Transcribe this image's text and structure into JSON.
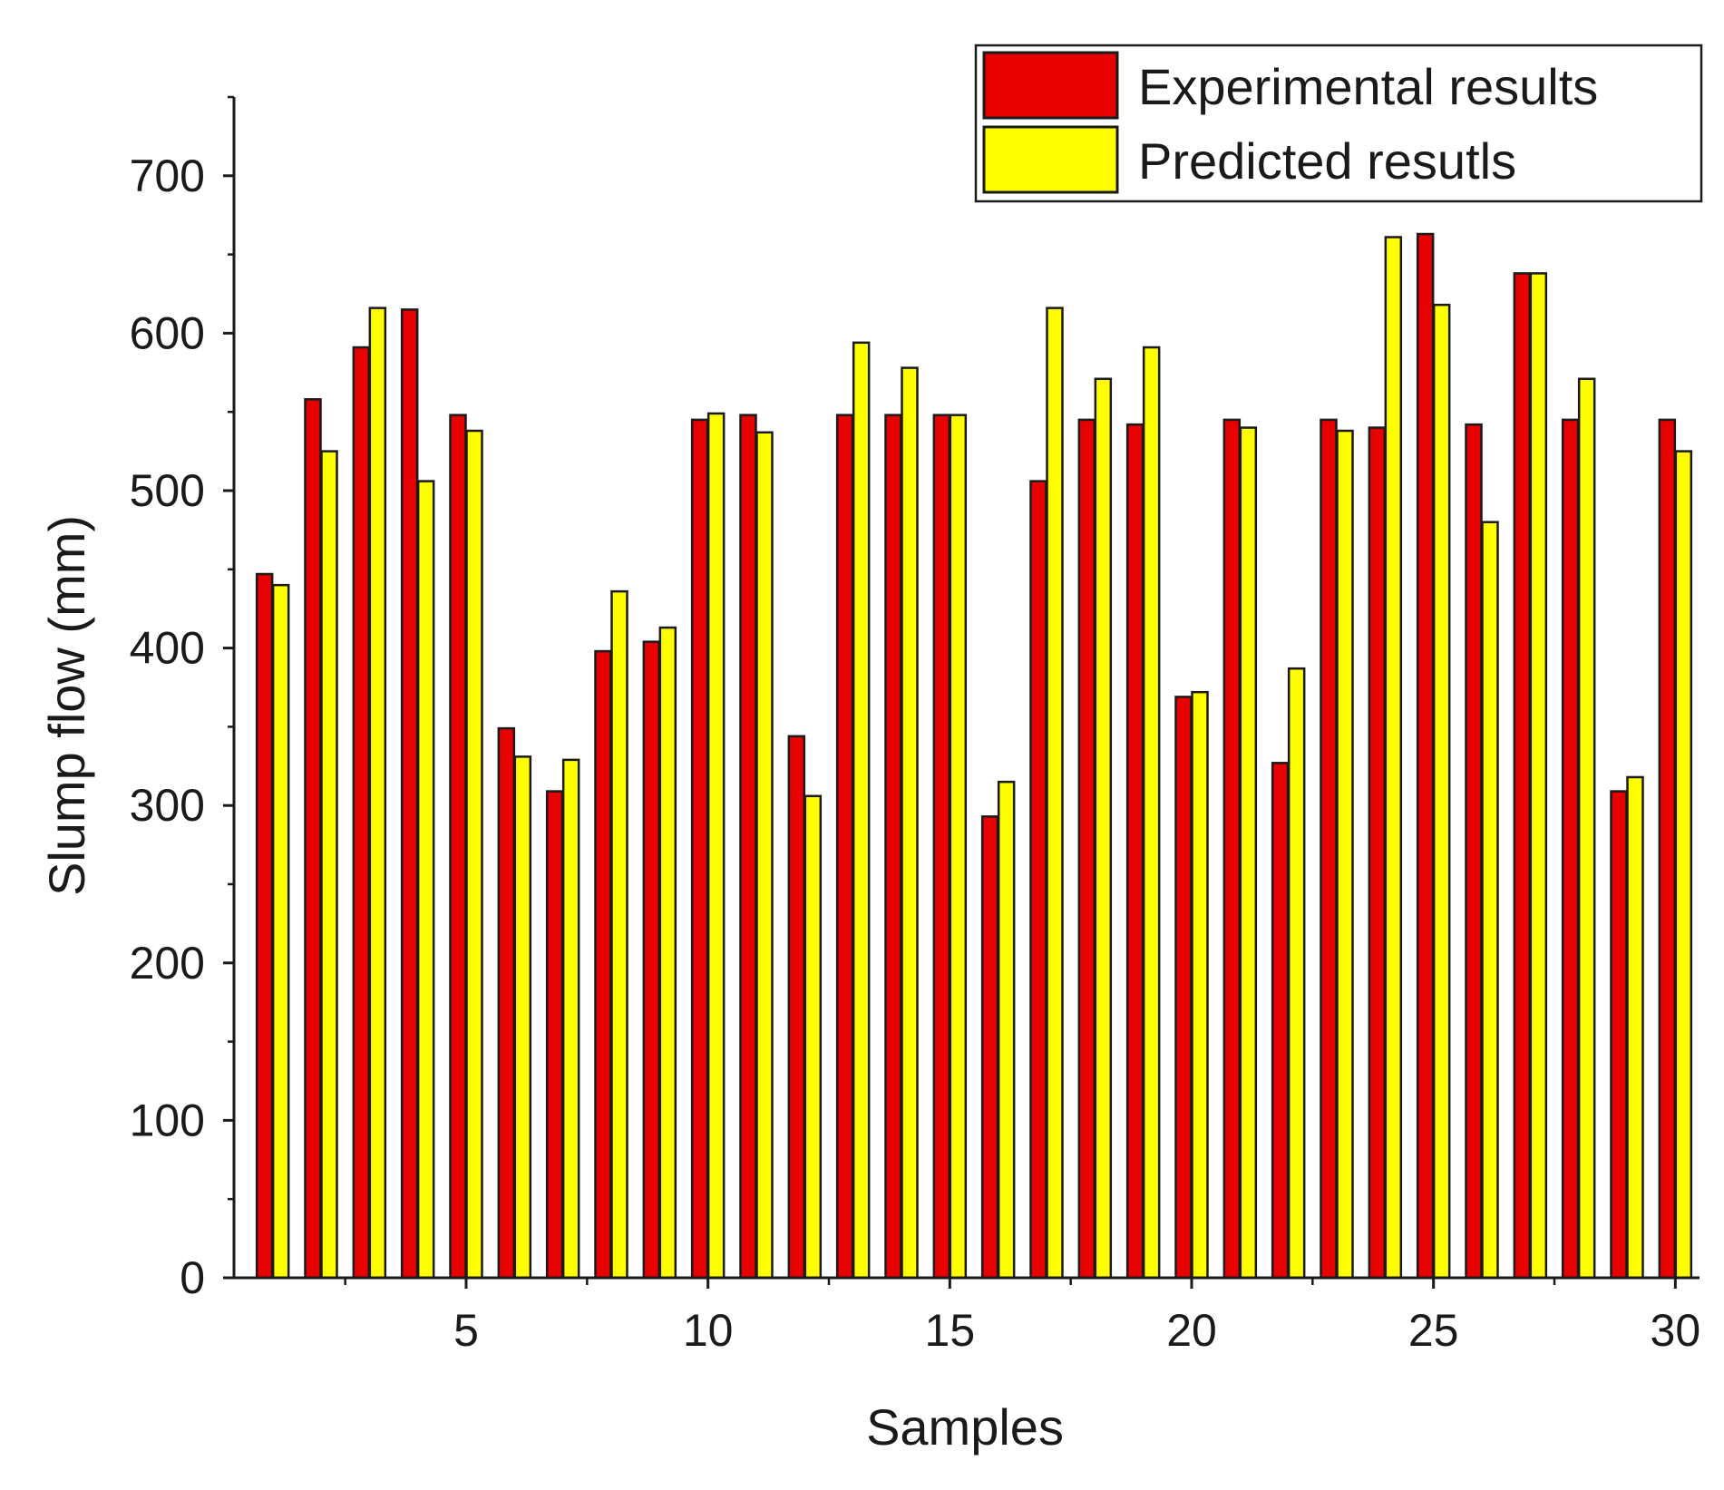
{
  "chart_data": {
    "type": "bar",
    "title": "",
    "xlabel": "Samples",
    "ylabel": "Slump flow (mm)",
    "ylim": [
      0,
      750
    ],
    "yticks": [
      0,
      100,
      200,
      300,
      400,
      500,
      600,
      700
    ],
    "xlim": [
      0.2,
      30.5
    ],
    "xticks": [
      5,
      10,
      15,
      20,
      25,
      30
    ],
    "grid": false,
    "legend_position": "top-right",
    "categories": [
      1,
      2,
      3,
      4,
      5,
      6,
      7,
      8,
      9,
      10,
      11,
      12,
      13,
      14,
      15,
      16,
      17,
      18,
      19,
      20,
      21,
      22,
      23,
      24,
      25,
      26,
      27,
      28,
      29,
      30
    ],
    "series": [
      {
        "name": "Experimental results",
        "color": "#e60000",
        "values": [
          447,
          558,
          591,
          615,
          548,
          349,
          309,
          398,
          404,
          545,
          548,
          344,
          548,
          548,
          548,
          293,
          506,
          545,
          542,
          369,
          545,
          327,
          545,
          540,
          663,
          542,
          638,
          545,
          309,
          545
        ]
      },
      {
        "name": "Predicted resutls",
        "color": "#ffff00",
        "values": [
          440,
          525,
          616,
          506,
          538,
          331,
          329,
          436,
          413,
          549,
          537,
          306,
          594,
          578,
          548,
          315,
          616,
          571,
          591,
          372,
          540,
          387,
          538,
          661,
          618,
          480,
          638,
          571,
          318,
          525
        ]
      }
    ]
  }
}
